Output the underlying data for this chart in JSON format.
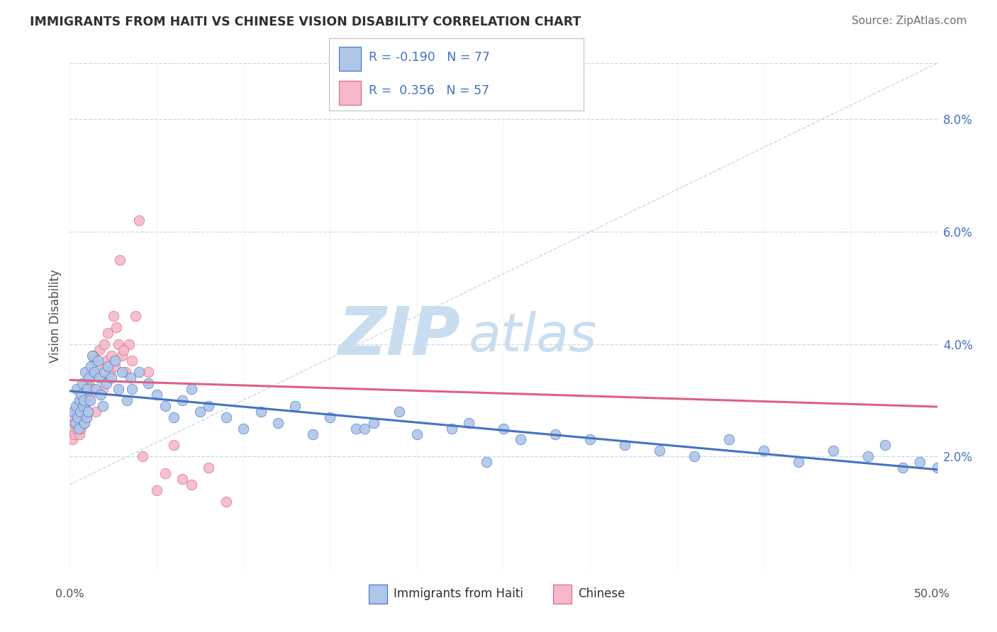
{
  "title": "IMMIGRANTS FROM HAITI VS CHINESE VISION DISABILITY CORRELATION CHART",
  "source": "Source: ZipAtlas.com",
  "ylabel": "Vision Disability",
  "xlim": [
    0.0,
    50.0
  ],
  "ylim": [
    0.0,
    9.0
  ],
  "yticks": [
    2.0,
    4.0,
    6.0,
    8.0
  ],
  "xticks": [
    0.0,
    5.0,
    10.0,
    15.0,
    20.0,
    25.0,
    30.0,
    35.0,
    40.0,
    45.0,
    50.0
  ],
  "haiti_R": -0.19,
  "haiti_N": 77,
  "chinese_R": 0.356,
  "chinese_N": 57,
  "haiti_dot_color": "#aec6e8",
  "chinese_dot_color": "#f4b8c8",
  "haiti_line_color": "#4472c4",
  "chinese_line_color": "#e06080",
  "watermark_zip": "ZIP",
  "watermark_atlas": "atlas",
  "watermark_color": "#d0e4f0",
  "background_color": "#ffffff",
  "grid_color": "#c8d8e8",
  "title_color": "#303030",
  "source_color": "#707070",
  "axis_label_color": "#505050",
  "tick_color": "#4472c4",
  "legend_border_color": "#c0c0c0",
  "haiti_legend_fill": "#aec6e8",
  "haiti_legend_edge": "#4472c4",
  "chinese_legend_fill": "#f4b8c8",
  "chinese_legend_edge": "#e06080",
  "haiti_scatter_x": [
    0.2,
    0.3,
    0.35,
    0.4,
    0.45,
    0.5,
    0.55,
    0.6,
    0.65,
    0.7,
    0.75,
    0.8,
    0.85,
    0.9,
    0.95,
    1.0,
    1.05,
    1.1,
    1.15,
    1.2,
    1.3,
    1.4,
    1.5,
    1.6,
    1.7,
    1.8,
    1.9,
    2.0,
    2.1,
    2.2,
    2.4,
    2.6,
    2.8,
    3.0,
    3.3,
    3.6,
    4.0,
    4.5,
    5.0,
    5.5,
    6.0,
    6.5,
    7.0,
    7.5,
    8.0,
    9.0,
    10.0,
    11.0,
    12.0,
    13.0,
    14.0,
    15.0,
    16.5,
    17.5,
    19.0,
    20.0,
    22.0,
    23.0,
    24.0,
    25.0,
    26.0,
    28.0,
    30.0,
    32.0,
    34.0,
    36.0,
    38.0,
    40.0,
    42.0,
    44.0,
    46.0,
    47.0,
    48.0,
    50.0,
    49.0,
    17.0,
    3.5
  ],
  "haiti_scatter_y": [
    2.8,
    2.6,
    2.9,
    3.2,
    2.7,
    2.5,
    3.0,
    2.8,
    3.1,
    3.3,
    2.9,
    3.0,
    2.6,
    3.5,
    2.7,
    3.2,
    2.8,
    3.4,
    3.0,
    3.6,
    3.8,
    3.5,
    3.2,
    3.7,
    3.4,
    3.1,
    2.9,
    3.5,
    3.3,
    3.6,
    3.4,
    3.7,
    3.2,
    3.5,
    3.0,
    3.2,
    3.5,
    3.3,
    3.1,
    2.9,
    2.7,
    3.0,
    3.2,
    2.8,
    2.9,
    2.7,
    2.5,
    2.8,
    2.6,
    2.9,
    2.4,
    2.7,
    2.5,
    2.6,
    2.8,
    2.4,
    2.5,
    2.6,
    1.9,
    2.5,
    2.3,
    2.4,
    2.3,
    2.2,
    2.1,
    2.0,
    2.3,
    2.1,
    1.9,
    2.1,
    2.0,
    2.2,
    1.8,
    1.8,
    1.9,
    2.5,
    3.4
  ],
  "chinese_scatter_x": [
    0.1,
    0.15,
    0.2,
    0.25,
    0.3,
    0.35,
    0.4,
    0.45,
    0.5,
    0.55,
    0.6,
    0.65,
    0.7,
    0.75,
    0.8,
    0.85,
    0.9,
    0.95,
    1.0,
    1.05,
    1.1,
    1.15,
    1.2,
    1.3,
    1.4,
    1.5,
    1.6,
    1.7,
    1.8,
    1.9,
    2.0,
    2.1,
    2.2,
    2.3,
    2.4,
    2.5,
    2.6,
    2.7,
    2.8,
    2.9,
    3.0,
    3.2,
    3.4,
    3.6,
    3.8,
    4.0,
    4.2,
    4.5,
    5.0,
    5.5,
    6.0,
    6.5,
    7.0,
    8.0,
    9.0,
    3.1,
    1.35
  ],
  "chinese_scatter_y": [
    2.5,
    2.3,
    2.7,
    2.4,
    2.6,
    2.8,
    2.5,
    2.9,
    2.6,
    2.4,
    2.8,
    2.5,
    2.7,
    3.0,
    2.6,
    2.9,
    3.2,
    2.7,
    3.0,
    2.8,
    3.3,
    3.1,
    3.5,
    3.2,
    3.7,
    2.8,
    3.6,
    3.9,
    3.4,
    3.2,
    4.0,
    3.7,
    4.2,
    3.5,
    3.8,
    4.5,
    3.6,
    4.3,
    4.0,
    5.5,
    3.8,
    3.5,
    4.0,
    3.7,
    4.5,
    6.2,
    2.0,
    3.5,
    1.4,
    1.7,
    2.2,
    1.6,
    1.5,
    1.8,
    1.2,
    3.9,
    3.8
  ],
  "diag_line_start_x": 0.0,
  "diag_line_end_x": 50.0,
  "diag_line_start_y": 1.5,
  "diag_line_end_y": 9.0
}
